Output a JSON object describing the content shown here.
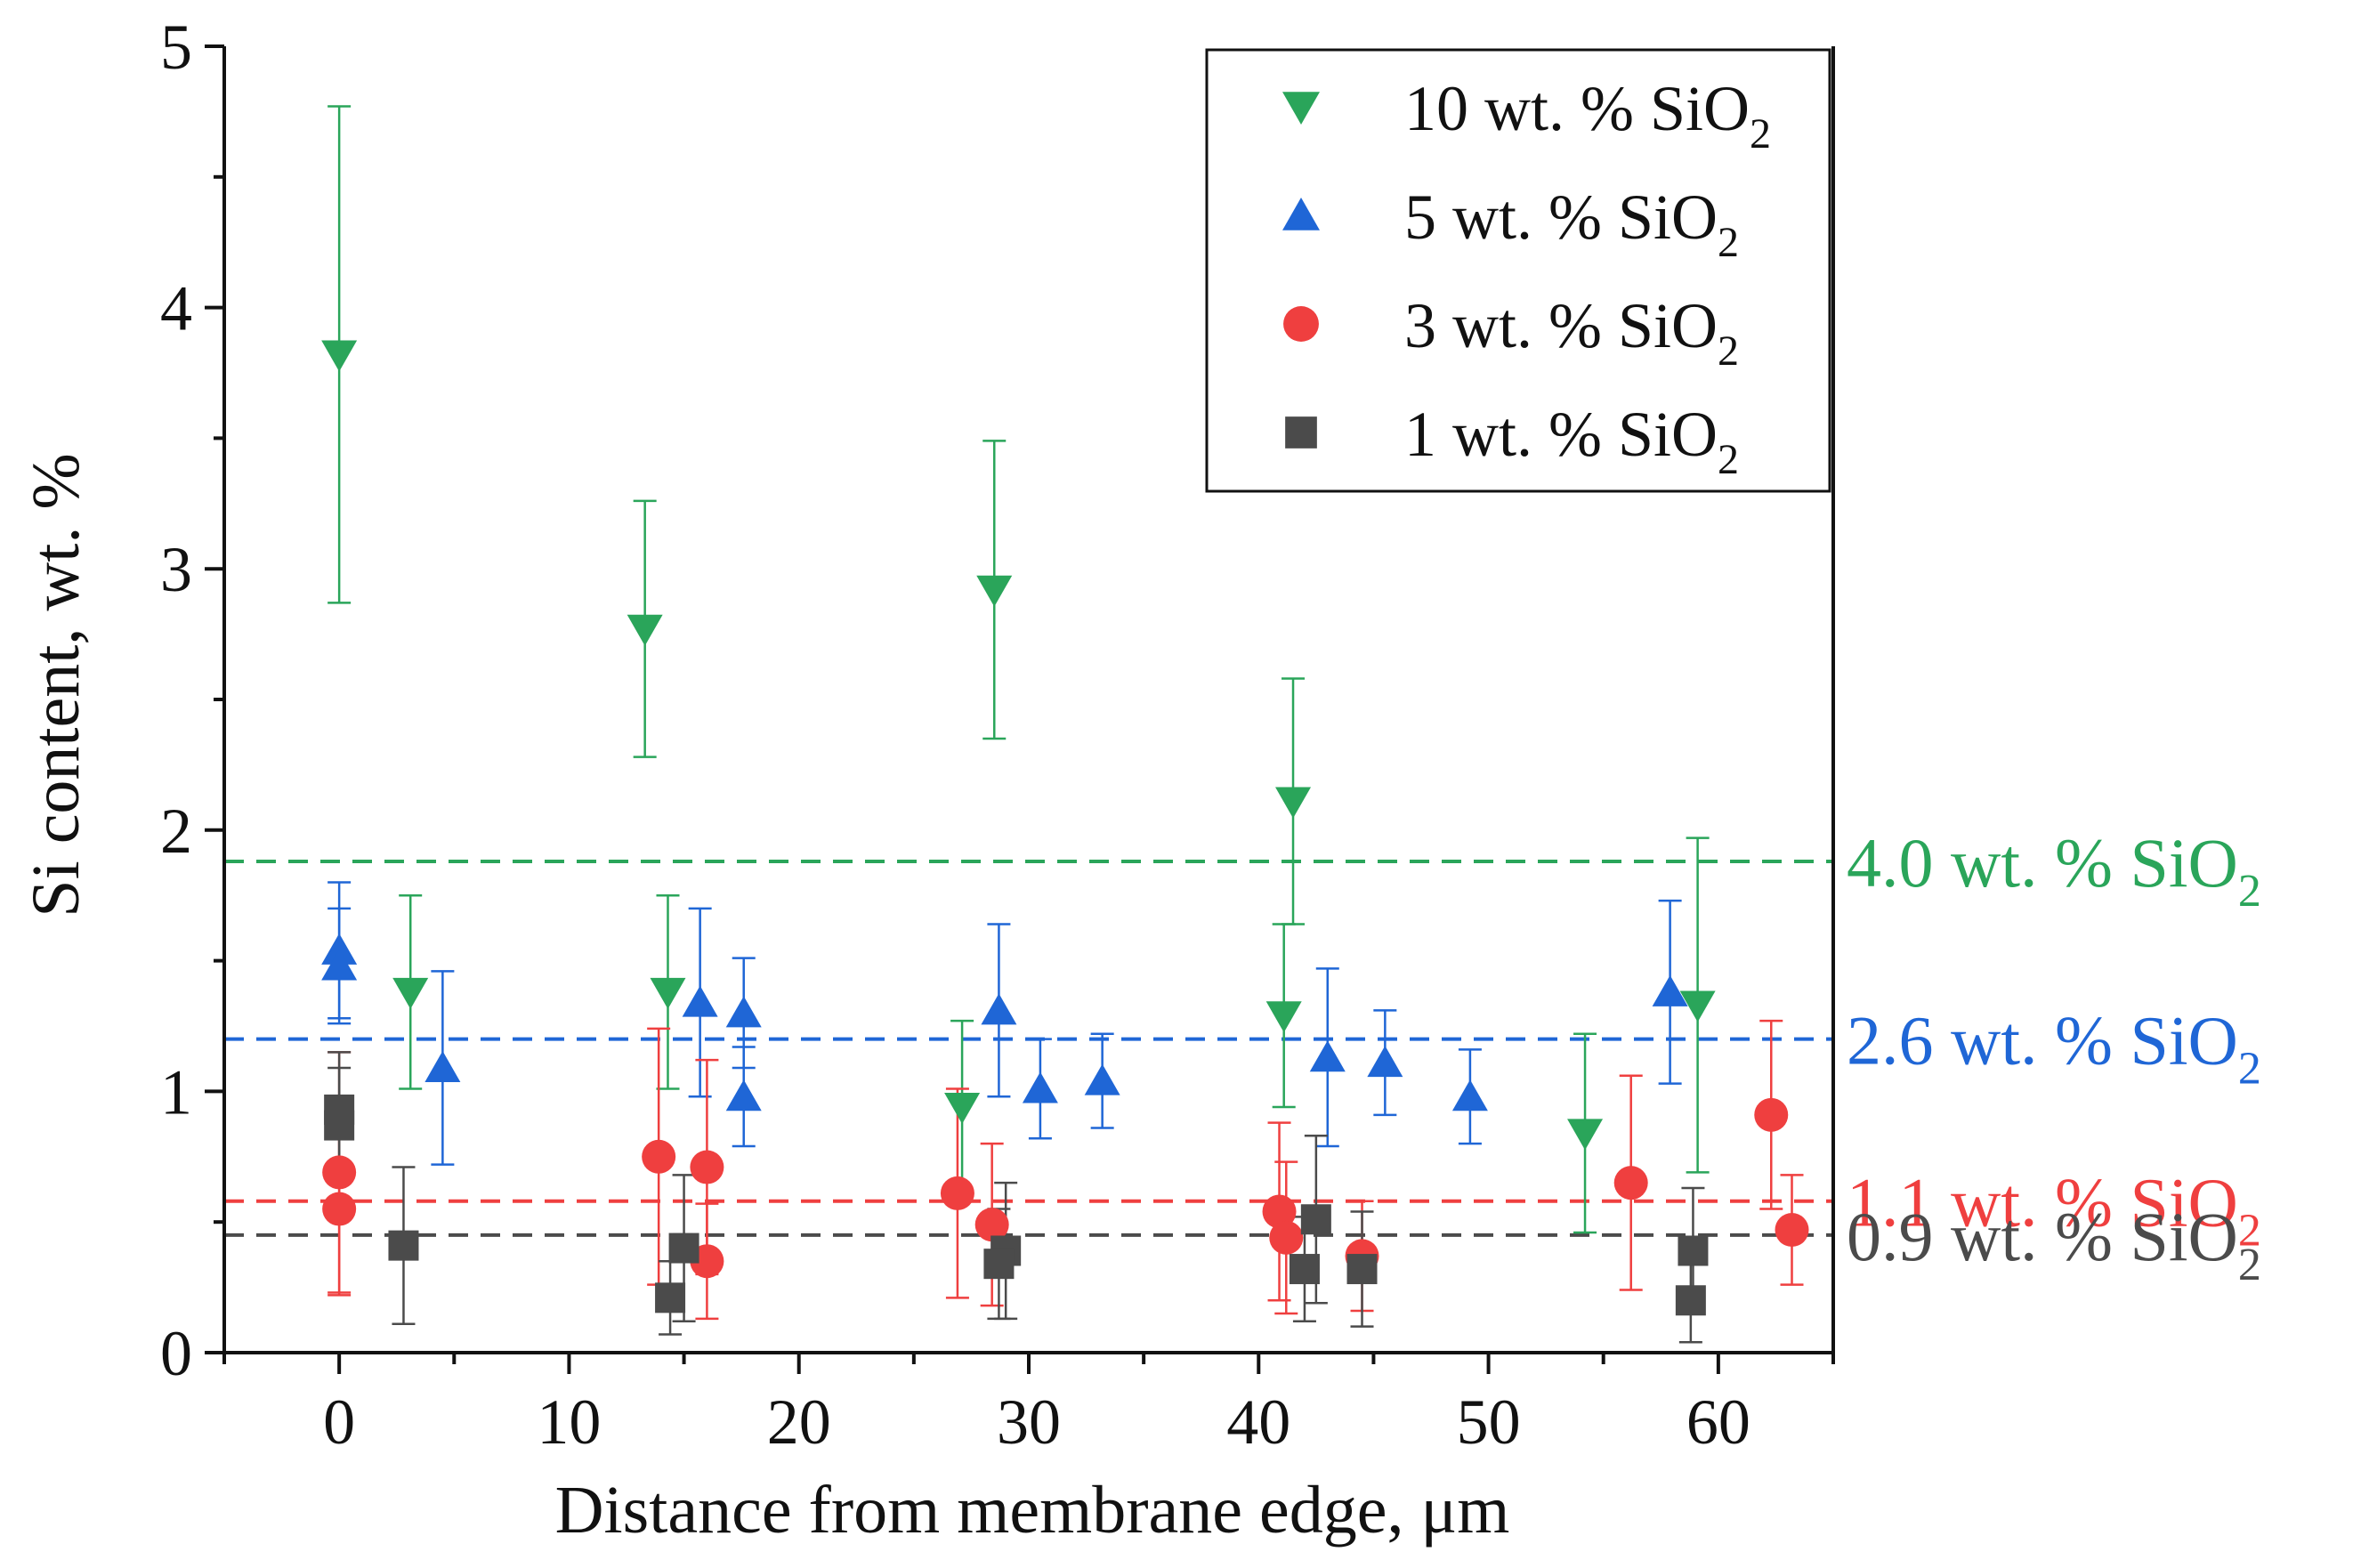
{
  "chart_data": {
    "type": "scatter",
    "xlabel": "Distance from membrane edge, μm",
    "ylabel": "Si content, wt. %",
    "xlim": [
      -5,
      65
    ],
    "ylim": [
      0,
      5
    ],
    "xticks": [
      0,
      10,
      20,
      30,
      40,
      50,
      60
    ],
    "yticks": [
      0,
      1,
      2,
      3,
      4,
      5
    ],
    "grid": false,
    "legend_position": "top-right",
    "series": [
      {
        "name": "10 wt. % SiO",
        "name_sub": "2",
        "marker": "triangle-down",
        "color": "#2aa55a",
        "points": [
          {
            "x": 0,
            "y": 3.82,
            "err": 0.95
          },
          {
            "x": 3.1,
            "y": 1.38,
            "err": 0.37
          },
          {
            "x": 13.3,
            "y": 2.77,
            "err": 0.49
          },
          {
            "x": 14.3,
            "y": 1.38,
            "err": 0.37
          },
          {
            "x": 28.5,
            "y": 2.92,
            "err": 0.57
          },
          {
            "x": 27.1,
            "y": 0.94,
            "err": 0.33
          },
          {
            "x": 41.5,
            "y": 2.11,
            "err": 0.47
          },
          {
            "x": 41.1,
            "y": 1.29,
            "err": 0.35
          },
          {
            "x": 54.2,
            "y": 0.84,
            "err": 0.38
          },
          {
            "x": 59.1,
            "y": 1.33,
            "err": 0.64
          }
        ]
      },
      {
        "name": "5 wt. % SiO",
        "name_sub": "2",
        "marker": "triangle-up",
        "color": "#1f66d6",
        "points": [
          {
            "x": 0,
            "y": 1.54,
            "err": 0.26
          },
          {
            "x": 0,
            "y": 1.48,
            "err": 0.22
          },
          {
            "x": 4.5,
            "y": 1.09,
            "err": 0.37
          },
          {
            "x": 15.7,
            "y": 1.34,
            "err": 0.36
          },
          {
            "x": 17.6,
            "y": 1.3,
            "err": 0.21
          },
          {
            "x": 17.6,
            "y": 0.98,
            "err": 0.19
          },
          {
            "x": 28.7,
            "y": 1.31,
            "err": 0.33
          },
          {
            "x": 30.5,
            "y": 1.01,
            "err": 0.19
          },
          {
            "x": 33.2,
            "y": 1.04,
            "err": 0.18
          },
          {
            "x": 43.0,
            "y": 1.13,
            "err": 0.34
          },
          {
            "x": 45.5,
            "y": 1.11,
            "err": 0.2
          },
          {
            "x": 49.2,
            "y": 0.98,
            "err": 0.18
          },
          {
            "x": 57.9,
            "y": 1.38,
            "err": 0.35
          }
        ]
      },
      {
        "name": "3 wt. % SiO",
        "name_sub": "2",
        "marker": "circle",
        "color": "#ef3f3f",
        "points": [
          {
            "x": 0,
            "y": 0.69,
            "err": 0.46
          },
          {
            "x": 0,
            "y": 0.55,
            "err": 0.33
          },
          {
            "x": 13.9,
            "y": 0.75,
            "err": 0.49
          },
          {
            "x": 16.0,
            "y": 0.71,
            "err": 0.41
          },
          {
            "x": 16.0,
            "y": 0.35,
            "err": 0.22
          },
          {
            "x": 26.9,
            "y": 0.61,
            "err": 0.4
          },
          {
            "x": 28.4,
            "y": 0.49,
            "err": 0.31
          },
          {
            "x": 40.9,
            "y": 0.54,
            "err": 0.34
          },
          {
            "x": 41.2,
            "y": 0.44,
            "err": 0.29
          },
          {
            "x": 44.5,
            "y": 0.37,
            "err": 0.21
          },
          {
            "x": 56.2,
            "y": 0.65,
            "err": 0.41
          },
          {
            "x": 62.3,
            "y": 0.91,
            "err": 0.36
          },
          {
            "x": 63.2,
            "y": 0.47,
            "err": 0.21
          }
        ]
      },
      {
        "name": "1 wt. % SiO",
        "name_sub": "2",
        "marker": "square",
        "color": "#4b4b4b",
        "points": [
          {
            "x": 0,
            "y": 0.93,
            "err": 0.22
          },
          {
            "x": 0,
            "y": 0.87,
            "err": 0.22
          },
          {
            "x": 2.8,
            "y": 0.41,
            "err": 0.3
          },
          {
            "x": 14.4,
            "y": 0.21,
            "err": 0.14
          },
          {
            "x": 15.0,
            "y": 0.4,
            "err": 0.28
          },
          {
            "x": 29.0,
            "y": 0.39,
            "err": 0.26
          },
          {
            "x": 28.7,
            "y": 0.34,
            "err": 0.21
          },
          {
            "x": 42.5,
            "y": 0.51,
            "err": 0.32
          },
          {
            "x": 42.0,
            "y": 0.32,
            "err": 0.2
          },
          {
            "x": 44.5,
            "y": 0.32,
            "err": 0.22
          },
          {
            "x": 58.9,
            "y": 0.39,
            "err": 0.24
          },
          {
            "x": 58.8,
            "y": 0.2,
            "err": 0.16
          }
        ]
      }
    ],
    "reference_lines": [
      {
        "y": 1.88,
        "label": "4.0 wt. % SiO",
        "label_sub": "2",
        "color": "#2aa55a"
      },
      {
        "y": 1.2,
        "label": "2.6 wt. % SiO",
        "label_sub": "2",
        "color": "#1f66d6"
      },
      {
        "y": 0.58,
        "label": "1.1 wt. % SiO",
        "label_sub": "2",
        "color": "#ef3f3f"
      },
      {
        "y": 0.45,
        "label": "0.9 wt. % SiO",
        "label_sub": "2",
        "color": "#4b4b4b"
      }
    ]
  }
}
